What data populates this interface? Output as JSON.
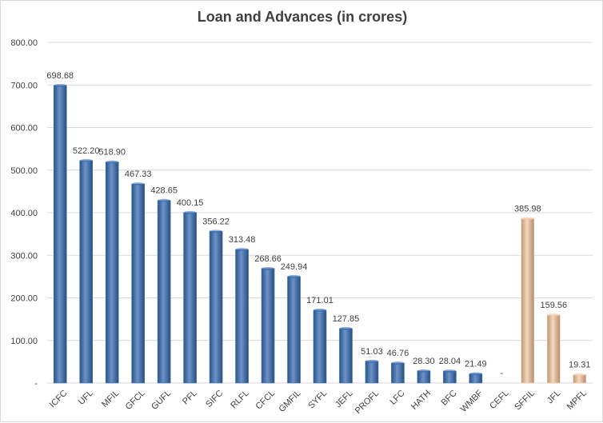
{
  "chart_data": {
    "type": "bar",
    "title": "Loan and Advances (in crores)",
    "xlabel": "",
    "ylabel": "",
    "ylim": [
      0,
      800
    ],
    "yticks": [
      "-",
      "100.00",
      "200.00",
      "300.00",
      "400.00",
      "500.00",
      "600.00",
      "700.00",
      "800.00"
    ],
    "grid": true,
    "categories": [
      "ICFC",
      "UFL",
      "MFIL",
      "GFCL",
      "GUFL",
      "PFL",
      "SIFC",
      "RLFL",
      "CFCL",
      "GMFIL",
      "SYFL",
      "JEFL",
      "PROFL",
      "LFC",
      "HATH",
      "BFC",
      "WMBF",
      "CEFL",
      "SFFIL",
      "JFL",
      "MPFL"
    ],
    "values": [
      698.68,
      522.2,
      518.9,
      467.33,
      428.65,
      400.15,
      356.22,
      313.48,
      268.66,
      249.94,
      171.01,
      127.85,
      51.03,
      46.76,
      28.3,
      28.04,
      21.49,
      0,
      385.98,
      159.56,
      19.31
    ],
    "value_labels": [
      "698.68",
      "522.20",
      "518.90",
      "467.33",
      "428.65",
      "400.15",
      "356.22",
      "313.48",
      "268.66",
      "249.94",
      "171.01",
      "127.85",
      "51.03",
      "46.76",
      "28.30",
      "28.04",
      "21.49",
      "-",
      "385.98",
      "159.56",
      "19.31"
    ],
    "bar_colors": [
      "#3a6fb5",
      "#3a6fb5",
      "#3a6fb5",
      "#3a6fb5",
      "#3a6fb5",
      "#3a6fb5",
      "#3a6fb5",
      "#3a6fb5",
      "#3a6fb5",
      "#3a6fb5",
      "#3a6fb5",
      "#3a6fb5",
      "#3a6fb5",
      "#3a6fb5",
      "#3a6fb5",
      "#3a6fb5",
      "#3a6fb5",
      "#3a6fb5",
      "#f6c9a4",
      "#f6c9a4",
      "#f6c9a4"
    ],
    "colors": {
      "blue_series": "#3a6fb5",
      "peach_series": "#f6c9a4",
      "gridline": "#d9d9d9",
      "text": "#404040"
    }
  }
}
